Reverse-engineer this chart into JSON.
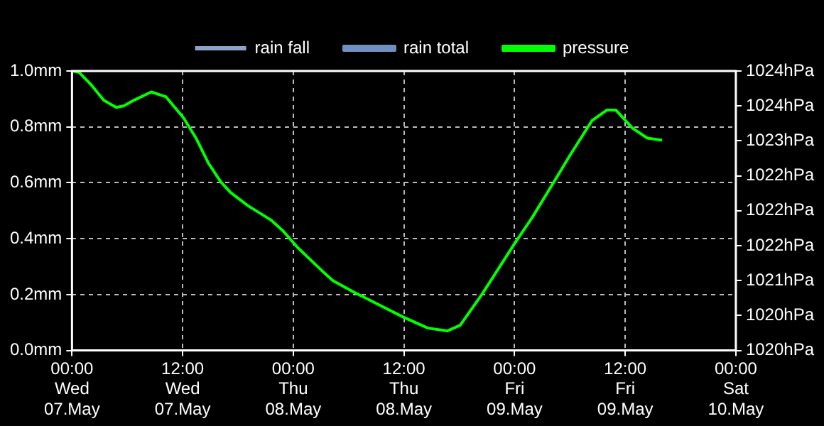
{
  "chart_data": {
    "type": "line",
    "series": [
      {
        "name": "rain fall",
        "type": "bar",
        "color": "#8fa3c8",
        "axis": "y"
      },
      {
        "name": "rain total",
        "color": "#7090c0",
        "axis": "y"
      },
      {
        "name": "pressure",
        "color": "#00ff00",
        "axis": "y2",
        "x": [
          "--05-07T00:06",
          "--05-07T00:46",
          "--05-07T02:06",
          "--05-07T03:27",
          "--05-07T04:48",
          "--05-07T05:36",
          "--05-07T06:42",
          "--05-07T08:36",
          "--05-07T10:12",
          "--05-07T12:06",
          "--05-07T13:27",
          "--05-07T14:48",
          "--05-07T16:09",
          "--05-07T17:12",
          "--05-07T19:06",
          "--05-07T21:33",
          "--05-07T22:54",
          "--05-08T00:30",
          "--05-08T03:12",
          "--05-08T04:18",
          "--05-08T06:30",
          "--05-08T08:36",
          "--05-08T11:54",
          "--05-08T14:36",
          "--05-08T16:42",
          "--05-08T18:06",
          "--05-08T20:30",
          "--05-09T00:00",
          "--05-09T01:54",
          "--05-09T03:48",
          "--05-09T06:00",
          "--05-09T08:24",
          "--05-09T10:00",
          "--05-09T11:00",
          "--05-09T12:48",
          "--05-09T14:24",
          "--05-09T16:00"
        ],
        "values": [
          1024.0,
          1023.98,
          1023.8,
          1023.58,
          1023.48,
          1023.5,
          1023.58,
          1023.7,
          1023.63,
          1023.33,
          1023.04,
          1022.68,
          1022.41,
          1022.26,
          1022.07,
          1021.87,
          1021.71,
          1021.47,
          1021.13,
          1021.0,
          1020.84,
          1020.7,
          1020.48,
          1020.32,
          1020.28,
          1020.36,
          1020.81,
          1021.53,
          1021.9,
          1022.31,
          1022.79,
          1023.29,
          1023.44,
          1023.44,
          1023.18,
          1023.04,
          1023.01
        ]
      }
    ],
    "xlim": [
      "--05-07T00:00",
      "--05-10T00:00"
    ],
    "xticks": [
      {
        "value": "--05-07T00:00",
        "label": "00:00\nWed\n07.May"
      },
      {
        "value": "--05-07T12:00",
        "label": "12:00\nWed\n07.May"
      },
      {
        "value": "--05-08T00:00",
        "label": "00:00\nThu\n08.May"
      },
      {
        "value": "--05-08T12:00",
        "label": "12:00\nThu\n08.May"
      },
      {
        "value": "--05-09T00:00",
        "label": "00:00\nFri\n09.May"
      },
      {
        "value": "--05-09T12:00",
        "label": "12:00\nFri\n09.May"
      },
      {
        "value": "--05-10T00:00",
        "label": "00:00\nSat\n10.May"
      }
    ],
    "ylim": [
      0,
      1
    ],
    "yticks": [
      {
        "value": 0,
        "label": "0.0mm"
      },
      {
        "value": 0.2,
        "label": "0.2mm"
      },
      {
        "value": 0.4,
        "label": "0.4mm"
      },
      {
        "value": 0.6,
        "label": "0.6mm"
      },
      {
        "value": 0.8,
        "label": "0.8mm"
      },
      {
        "value": 1,
        "label": "1.0mm"
      }
    ],
    "y2lim": [
      1020,
      1024
    ],
    "y2ticks": [
      {
        "value": 1020,
        "label": "1020hPa"
      },
      {
        "value": 1020.5,
        "label": "1020hPa"
      },
      {
        "value": 1021,
        "label": "1021hPa"
      },
      {
        "value": 1021.5,
        "label": "1022hPa"
      },
      {
        "value": 1022,
        "label": "1022hPa"
      },
      {
        "value": 1022.5,
        "label": "1022hPa"
      },
      {
        "value": 1023,
        "label": "1023hPa"
      },
      {
        "value": 1023.5,
        "label": "1024hPa"
      },
      {
        "value": 1024,
        "label": "1024hPa"
      }
    ],
    "grid": true,
    "legend": "top"
  }
}
